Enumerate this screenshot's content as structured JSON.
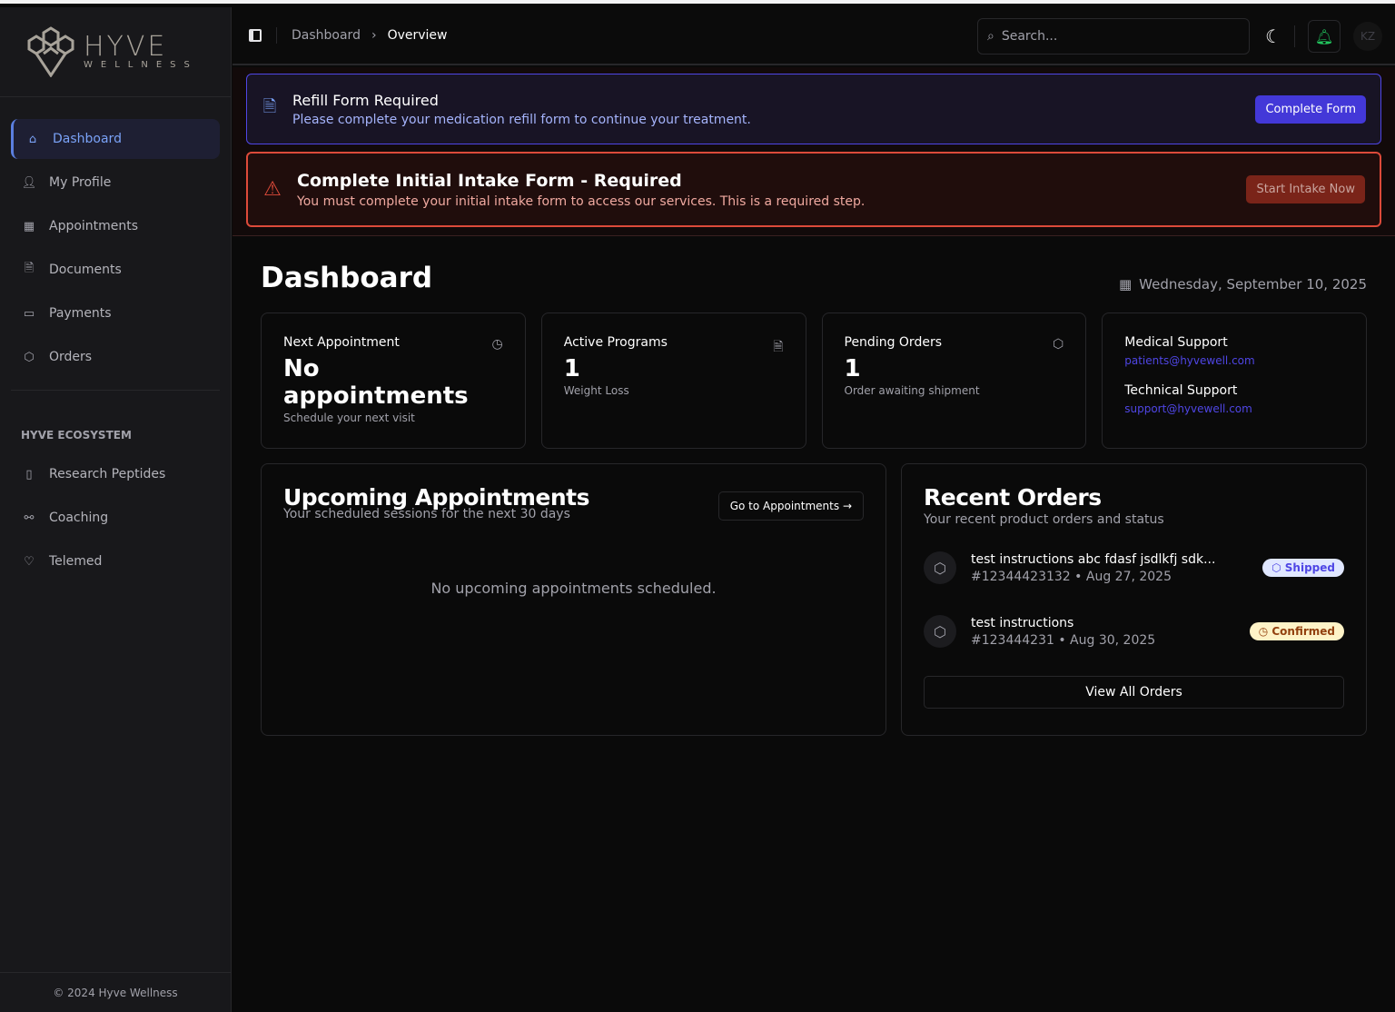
{
  "brand": {
    "name": "HYVE",
    "tagline": "WELLNESS",
    "logo_color": "#a8a39a"
  },
  "sidebar": {
    "items": [
      {
        "label": "Dashboard",
        "icon": "home-icon",
        "active": true
      },
      {
        "label": "My Profile",
        "icon": "user-icon"
      },
      {
        "label": "Appointments",
        "icon": "calendar-icon"
      },
      {
        "label": "Documents",
        "icon": "document-icon"
      },
      {
        "label": "Payments",
        "icon": "wallet-icon"
      },
      {
        "label": "Orders",
        "icon": "package-icon"
      }
    ],
    "section_title": "HYVE ECOSYSTEM",
    "ecosystem": [
      {
        "label": "Research Peptides",
        "icon": "test-tube-icon"
      },
      {
        "label": "Coaching",
        "icon": "dumbbell-icon"
      },
      {
        "label": "Telemed",
        "icon": "heart-pulse-icon"
      }
    ],
    "footer": "© 2024 Hyve Wellness"
  },
  "header": {
    "breadcrumb": [
      "Dashboard",
      "Overview"
    ],
    "search_placeholder": "Search...",
    "avatar": "KZ"
  },
  "banners": {
    "refill": {
      "title": "Refill Form Required",
      "text": "Please complete your medication refill form to continue your treatment.",
      "button": "Complete Form",
      "color": "#4f46e5"
    },
    "intake": {
      "title": "Complete Initial Intake Form - Required",
      "text": "You must complete your initial intake form to access our services. This is a required step.",
      "button": "Start Intake Now",
      "color": "#dc4a3a"
    }
  },
  "main": {
    "title": "Dashboard",
    "date": "Wednesday, September 10, 2025",
    "cards": [
      {
        "label": "Next Appointment",
        "value": "No appointments",
        "sub": "Schedule your next visit",
        "icon": "clock-icon"
      },
      {
        "label": "Active Programs",
        "value": "1",
        "sub": "Weight Loss",
        "icon": "document-icon"
      },
      {
        "label": "Pending Orders",
        "value": "1",
        "sub": "Order awaiting shipment",
        "icon": "package-icon"
      }
    ],
    "support": {
      "medical_label": "Medical Support",
      "medical_email": "patients@hyvewell.com",
      "tech_label": "Technical Support",
      "tech_email": "support@hyvewell.com"
    },
    "upcoming": {
      "title": "Upcoming Appointments",
      "subtitle": "Your scheduled sessions for the next 30 days",
      "button": "Go to Appointments",
      "empty": "No upcoming appointments scheduled."
    },
    "orders": {
      "title": "Recent Orders",
      "subtitle": "Your recent product orders and status",
      "view_all": "View All Orders",
      "items": [
        {
          "name": "test instructions abc fdasf jsdlkfj sdk...",
          "meta": "#12344423132 • Aug 27, 2025",
          "status": "Shipped"
        },
        {
          "name": "test instructions",
          "meta": "#123444231 • Aug 30, 2025",
          "status": "Confirmed"
        }
      ]
    }
  }
}
